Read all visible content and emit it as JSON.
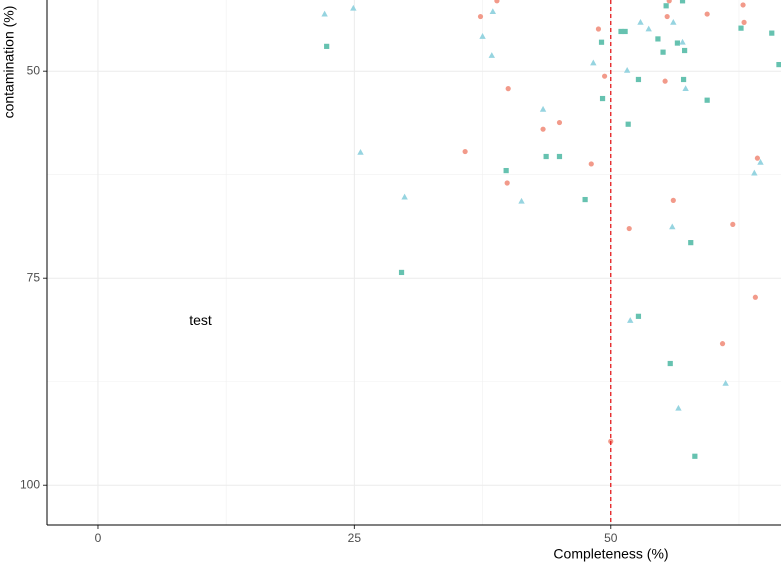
{
  "chart_data": {
    "type": "scatter",
    "x_label": "Completeness (%)",
    "y_label": "contamination (%)",
    "xlim": [
      -4.97,
      66.6
    ],
    "ylim": [
      104.8,
      41.4
    ],
    "xticks": [
      0,
      25,
      50
    ],
    "yticks": [
      50,
      75,
      100
    ],
    "x_minor_ticks": [
      12.5,
      37.5,
      62.5
    ],
    "y_minor_ticks": [
      62.5,
      87.5
    ],
    "grid": true,
    "reference_line": {
      "x": 50,
      "color": "#e41a1c",
      "dash": true
    },
    "annotation": {
      "text": "test",
      "x": 10,
      "y": 80.2
    },
    "series": [
      {
        "color": "#f29a8a",
        "shape": "circle",
        "x": [
          37.3,
          38.9,
          48.8,
          49.4,
          40.0,
          62.9,
          63.0,
          59.4,
          55.7,
          55.5,
          55.3,
          45.0,
          43.4,
          35.8,
          48.1,
          39.9,
          56.1,
          51.8,
          61.9,
          64.3,
          64.1,
          60.9,
          50.0
        ],
        "values": [
          43.4,
          41.5,
          44.9,
          50.6,
          52.1,
          42.0,
          44.1,
          43.1,
          41.5,
          43.4,
          51.2,
          56.2,
          57.0,
          59.7,
          61.2,
          63.5,
          65.6,
          69.0,
          68.5,
          60.5,
          77.3,
          82.9,
          94.7
        ]
      },
      {
        "color": "#66c2b0",
        "shape": "square",
        "x": [
          22.3,
          49.1,
          51.0,
          51.4,
          54.6,
          55.1,
          56.5,
          57.2,
          55.4,
          57.0,
          62.7,
          65.7,
          66.4,
          52.7,
          57.1,
          49.2,
          59.4,
          51.7,
          39.8,
          43.7,
          45.0,
          47.5,
          57.8,
          29.6,
          52.7,
          55.8,
          58.2
        ],
        "values": [
          47.0,
          46.5,
          45.2,
          45.2,
          46.1,
          47.7,
          46.6,
          47.5,
          42.1,
          41.5,
          44.8,
          45.4,
          49.2,
          51.0,
          51.0,
          53.3,
          53.5,
          56.4,
          62.0,
          60.3,
          60.3,
          65.5,
          70.7,
          74.3,
          79.6,
          85.3,
          96.5
        ]
      },
      {
        "color": "#96d4e0",
        "shape": "triangle",
        "x": [
          22.1,
          24.9,
          37.5,
          38.5,
          38.4,
          48.3,
          51.6,
          52.9,
          53.7,
          56.1,
          57.0,
          57.3,
          43.4,
          25.6,
          29.9,
          41.3,
          56.0,
          64.0,
          64.6,
          51.9,
          56.6,
          61.2
        ],
        "values": [
          43.1,
          42.4,
          45.8,
          42.8,
          48.1,
          49.0,
          49.9,
          44.1,
          44.9,
          44.1,
          46.5,
          52.1,
          54.6,
          59.8,
          65.2,
          65.7,
          68.8,
          62.3,
          61.0,
          80.1,
          90.7,
          87.7
        ]
      }
    ]
  }
}
